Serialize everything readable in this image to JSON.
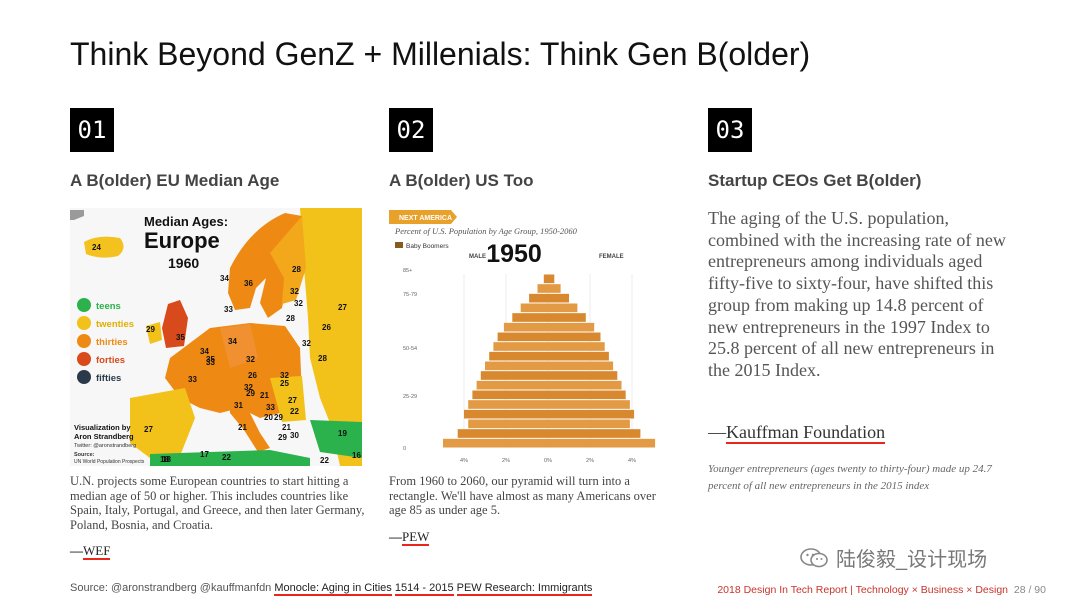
{
  "slide": {
    "title": "Think Beyond GenZ + Millenials: Think Gen B(older)"
  },
  "columns": [
    {
      "number": "01",
      "heading": "A B(older) EU Median Age",
      "caption": "U.N. projects some European countries to start hitting a median age of 50 or higher. This includes countries like Spain, Italy, Portugal, and Greece, and then later Germany, Poland, Bosnia, and Croatia.",
      "attribution_dash": "—",
      "attribution": "WEF"
    },
    {
      "number": "02",
      "heading": "A B(older) US Too",
      "caption": "From 1960 to 2060, our pyramid will turn into a rectangle. We'll have almost as many Americans over age 85 as under age 5.",
      "attribution_dash": "—",
      "attribution": "PEW"
    },
    {
      "number": "03",
      "heading": "Startup CEOs Get B(older)",
      "quote": "The aging of the U.S. population, combined with the increasing rate of new entrepreneurs among individuals aged fifty-five to sixty-four, have shifted this group from making up 14.8 percent of new entrepreneurs in the 1997 Index to 25.8 percent of all new entrepreneurs in the 2015 Index.",
      "attribution_dash": "—",
      "attribution": "Kauffman Foundation",
      "note": "Younger entrepreneurs (ages twenty to thirty-four) made up 24.7 percent of all new entrepreneurs in the 2015 index"
    }
  ],
  "map": {
    "title_line1": "Median Ages:",
    "title_line2": "Europe",
    "year": "1960",
    "legend": [
      {
        "label": "teens",
        "color": "#2bb24c"
      },
      {
        "label": "twenties",
        "color": "#f2c21b"
      },
      {
        "label": "thirties",
        "color": "#ee8a14"
      },
      {
        "label": "forties",
        "color": "#d84a1b"
      },
      {
        "label": "fifties",
        "color": "#2b3a4a"
      }
    ],
    "credit_line1": "Visualization by",
    "credit_line2": "Aron Strandberg",
    "credit_line3": "Twitter: @aronstrandberg",
    "source_label": "Source:",
    "source_text": "UN World Population Prospects",
    "labels": [
      "24",
      "28",
      "34",
      "36",
      "32",
      "27",
      "32",
      "33",
      "28",
      "29",
      "35",
      "26",
      "34",
      "33",
      "34",
      "35",
      "32",
      "28",
      "32",
      "33",
      "32",
      "26",
      "25",
      "32",
      "29",
      "31",
      "21",
      "27",
      "33",
      "29",
      "22",
      "20",
      "21",
      "30",
      "29",
      "27",
      "19",
      "18",
      "17",
      "22",
      "16",
      "18",
      "22",
      "21"
    ]
  },
  "pyramid": {
    "banner": "NEXT AMERICA",
    "subtitle": "Percent of U.S. Population by Age Group, 1950-2060",
    "legend_label": "Baby Boomers",
    "year": "1950",
    "male_label": "MALE",
    "female_label": "FEMALE",
    "age_labels": [
      "85+",
      "75-79",
      "50-54",
      "25-29",
      "0"
    ],
    "x_ticks": [
      "4%",
      "2%",
      "0%",
      "2%",
      "4%"
    ],
    "bars_left": [
      0.2,
      0.5,
      0.9,
      1.3,
      1.7,
      2.1,
      2.4,
      2.6,
      2.8,
      3.0,
      3.2,
      3.4,
      3.6,
      3.8,
      4.0,
      3.8,
      4.3,
      5.0
    ],
    "bars_right": [
      0.3,
      0.6,
      1.0,
      1.4,
      1.8,
      2.2,
      2.5,
      2.7,
      2.9,
      3.1,
      3.3,
      3.5,
      3.7,
      3.9,
      4.1,
      3.9,
      4.4,
      5.1
    ]
  },
  "footer": {
    "source_prefix": "Source: @aronstrandberg @kauffmanfdn",
    "link1": "Monocle: Aging in Cities",
    "link2": "1514 - 2015",
    "link3": "PEW Research: Immigrants",
    "report": "2018 Design In Tech Report | Technology × Business × Design",
    "page": "28 / 90"
  },
  "watermark": {
    "text": "陆俊毅_设计现场"
  },
  "colors": {
    "accent_red": "#e8261c",
    "pyramid_fill": "#d8892f",
    "map_sea": "#f7f7f7"
  }
}
